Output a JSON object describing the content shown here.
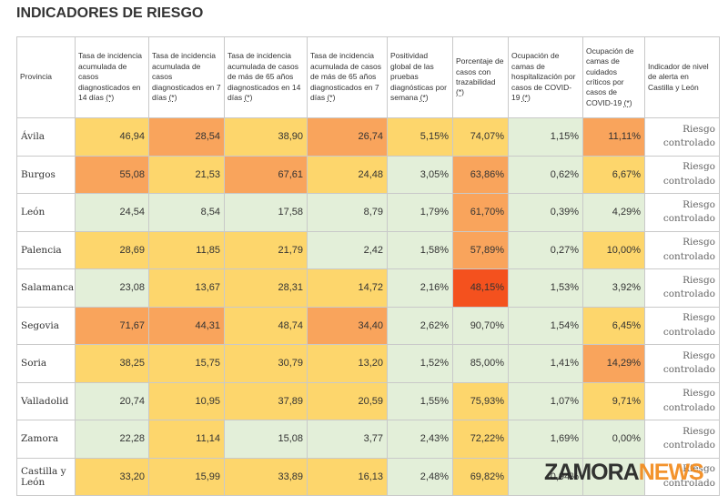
{
  "title": "INDICADORES DE RIESGO",
  "table": {
    "headers": [
      {
        "text": "Provincia"
      },
      {
        "text": "Tasa de incidencia acumulada de casos diagnosticados en 14 días",
        "note": "(*)"
      },
      {
        "text": "Tasa de incidencia acumulada de casos diagnosticados en 7 días",
        "note": "(*)"
      },
      {
        "text": "Tasa de incidencia acumulada de casos de más de 65 años diagnosticados en 14 días",
        "note": "(*)"
      },
      {
        "text": "Tasa de incidencia acumulada de casos de más de 65 años diagnosticados en 7 días",
        "note": "(*)"
      },
      {
        "text": "Positividad global de las pruebas diagnósticas por semana",
        "note": "(*)"
      },
      {
        "text": "Porcentaje de casos con trazabilidad",
        "note": "(*)"
      },
      {
        "text": "Ocupación de camas de hospitalización por casos de COVID-19",
        "note": "(*)"
      },
      {
        "text": "Ocupación de camas de cuidados críticos por casos de COVID-19",
        "note": "(*)"
      },
      {
        "text": "Indicador de nivel de alerta en Castilla y León"
      }
    ],
    "palette": {
      "G": "#e3efd9",
      "Y": "#fdd66c",
      "O": "#f9a45c",
      "R": "#f4511e",
      "W": "#ffffff"
    },
    "rows": [
      {
        "cells": [
          "Ávila",
          "46,94",
          "28,54",
          "38,90",
          "26,74",
          "5,15%",
          "74,07%",
          "1,15%",
          "11,11%",
          "Riesgo controlado"
        ],
        "colors": [
          "W",
          "Y",
          "O",
          "Y",
          "O",
          "Y",
          "Y",
          "G",
          "O",
          "W"
        ]
      },
      {
        "cells": [
          "Burgos",
          "55,08",
          "21,53",
          "67,61",
          "24,48",
          "3,05%",
          "63,86%",
          "0,62%",
          "6,67%",
          "Riesgo controlado"
        ],
        "colors": [
          "W",
          "O",
          "Y",
          "O",
          "Y",
          "G",
          "O",
          "G",
          "Y",
          "W"
        ]
      },
      {
        "cells": [
          "León",
          "24,54",
          "8,54",
          "17,58",
          "8,79",
          "1,79%",
          "61,70%",
          "0,39%",
          "4,29%",
          "Riesgo controlado"
        ],
        "colors": [
          "W",
          "G",
          "G",
          "G",
          "G",
          "G",
          "O",
          "G",
          "G",
          "W"
        ]
      },
      {
        "cells": [
          "Palencia",
          "28,69",
          "11,85",
          "21,79",
          "2,42",
          "1,58%",
          "57,89%",
          "0,27%",
          "10,00%",
          "Riesgo controlado"
        ],
        "colors": [
          "W",
          "Y",
          "Y",
          "Y",
          "G",
          "G",
          "O",
          "G",
          "Y",
          "W"
        ]
      },
      {
        "cells": [
          "Salamanca",
          "23,08",
          "13,67",
          "28,31",
          "14,72",
          "2,16%",
          "48,15%",
          "1,53%",
          "3,92%",
          "Riesgo controlado"
        ],
        "colors": [
          "W",
          "G",
          "Y",
          "Y",
          "Y",
          "G",
          "R",
          "G",
          "G",
          "W"
        ]
      },
      {
        "cells": [
          "Segovia",
          "71,67",
          "44,31",
          "48,74",
          "34,40",
          "2,62%",
          "90,70%",
          "1,54%",
          "6,45%",
          "Riesgo controlado"
        ],
        "colors": [
          "W",
          "O",
          "O",
          "Y",
          "O",
          "G",
          "G",
          "G",
          "Y",
          "W"
        ]
      },
      {
        "cells": [
          "Soria",
          "38,25",
          "15,75",
          "30,79",
          "13,20",
          "1,52%",
          "85,00%",
          "1,41%",
          "14,29%",
          "Riesgo controlado"
        ],
        "colors": [
          "W",
          "Y",
          "Y",
          "Y",
          "Y",
          "G",
          "G",
          "G",
          "O",
          "W"
        ]
      },
      {
        "cells": [
          "Valladolid",
          "20,74",
          "10,95",
          "37,89",
          "20,59",
          "1,55%",
          "75,93%",
          "1,07%",
          "9,71%",
          "Riesgo controlado"
        ],
        "colors": [
          "W",
          "G",
          "Y",
          "Y",
          "Y",
          "G",
          "Y",
          "G",
          "Y",
          "W"
        ]
      },
      {
        "cells": [
          "Zamora",
          "22,28",
          "11,14",
          "15,08",
          "3,77",
          "2,43%",
          "72,22%",
          "1,69%",
          "0,00%",
          "Riesgo controlado"
        ],
        "colors": [
          "W",
          "G",
          "Y",
          "G",
          "G",
          "G",
          "Y",
          "G",
          "G",
          "W"
        ]
      },
      {
        "cells": [
          "Castilla y León",
          "33,20",
          "15,99",
          "33,89",
          "16,13",
          "2,48%",
          "69,82%",
          "0,94%",
          null,
          "Riesgo controlado"
        ],
        "colors": [
          "W",
          "Y",
          "Y",
          "Y",
          "Y",
          "G",
          "Y",
          "G",
          "G",
          "W"
        ]
      }
    ]
  },
  "logo": {
    "part1": "ZAMORA",
    "part2": "NEWS"
  }
}
